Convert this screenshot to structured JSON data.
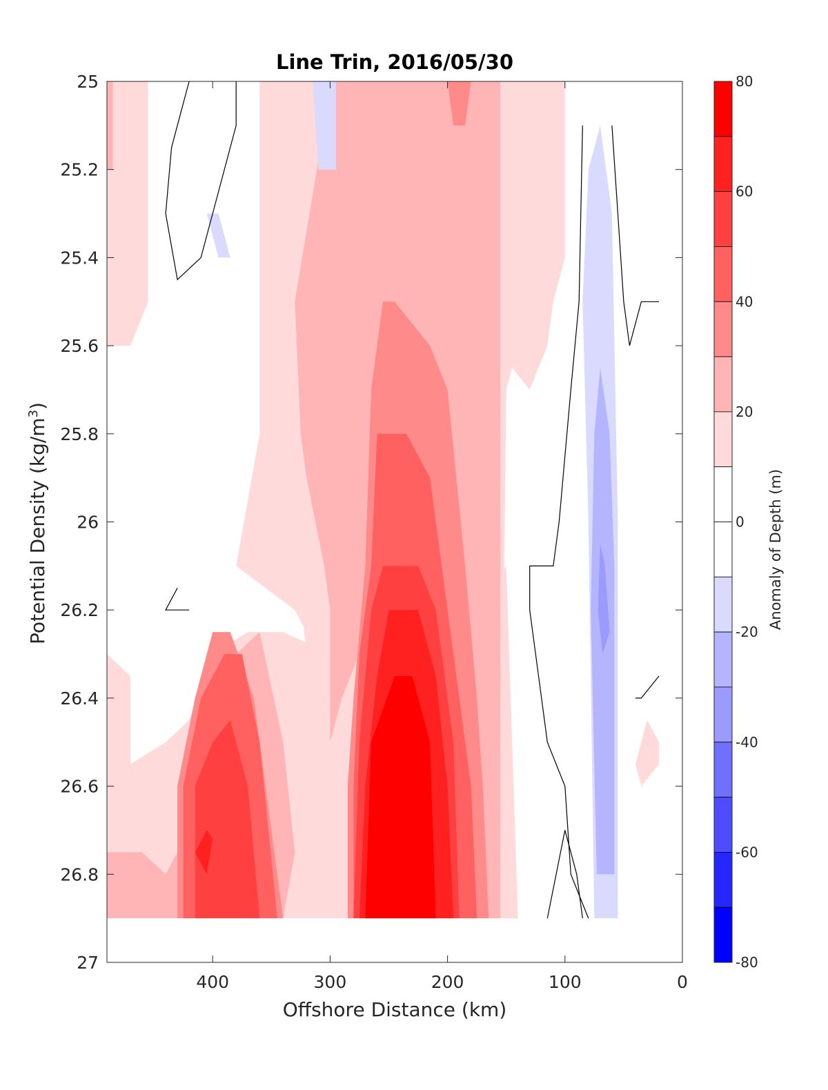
{
  "chart_data": {
    "type": "contour",
    "title": "Line Trin, 2016/05/30",
    "xlabel": "Offshore Distance (km)",
    "ylabel_main": "Potential Density (kg/m",
    "ylabel_sup": "3",
    "ylabel_close": ")",
    "xlim": [
      490,
      0
    ],
    "ylim": [
      27,
      25
    ],
    "x_reversed": true,
    "y_reversed": true,
    "x_ticks": [
      400,
      300,
      200,
      100,
      0
    ],
    "x_tick_labels": [
      "400",
      "300",
      "200",
      "100",
      "0"
    ],
    "y_ticks": [
      25,
      25.2,
      25.4,
      25.6,
      25.8,
      26,
      26.2,
      26.4,
      26.6,
      26.8,
      27
    ],
    "y_tick_labels": [
      "25",
      "25.2",
      "25.4",
      "25.6",
      "25.8",
      "26",
      "26.2",
      "26.4",
      "26.6",
      "26.8",
      "27"
    ],
    "grid": false,
    "colorbar": {
      "label": "Anomaly of Depth (m)",
      "range": [
        -80,
        80
      ],
      "ticks": [
        80,
        60,
        40,
        20,
        0,
        -20,
        -40,
        -60,
        -80
      ],
      "tick_labels": [
        "80",
        "60",
        "40",
        "20",
        "0",
        "-20",
        "-40",
        "-60",
        "-80"
      ],
      "levels": [
        {
          "from": 70,
          "to": 80,
          "color": "#ff0000"
        },
        {
          "from": 60,
          "to": 70,
          "color": "#ff2020"
        },
        {
          "from": 50,
          "to": 60,
          "color": "#ff4040"
        },
        {
          "from": 40,
          "to": 50,
          "color": "#ff6060"
        },
        {
          "from": 30,
          "to": 40,
          "color": "#ff8a8a"
        },
        {
          "from": 20,
          "to": 30,
          "color": "#ffb5b5"
        },
        {
          "from": 10,
          "to": 20,
          "color": "#ffdada"
        },
        {
          "from": 0,
          "to": 10,
          "color": "#ffffff"
        },
        {
          "from": -10,
          "to": 0,
          "color": "#ffffff"
        },
        {
          "from": -20,
          "to": -10,
          "color": "#dadaff"
        },
        {
          "from": -30,
          "to": -20,
          "color": "#b5b5ff"
        },
        {
          "from": -40,
          "to": -30,
          "color": "#9a9aff"
        },
        {
          "from": -50,
          "to": -40,
          "color": "#7070ff"
        },
        {
          "from": -60,
          "to": -50,
          "color": "#4d4dff"
        },
        {
          "from": -70,
          "to": -60,
          "color": "#2626ff"
        },
        {
          "from": -80,
          "to": -70,
          "color": "#0000ff"
        }
      ]
    },
    "data_extent": {
      "x_max": 490,
      "x_min": 20,
      "density_max": 26.9
    },
    "regions": [
      {
        "level": 10,
        "color": "#ffdada",
        "points": [
          [
            490,
            25
          ],
          [
            455,
            25
          ],
          [
            455,
            25.5
          ],
          [
            470,
            25.6
          ],
          [
            490,
            25.6
          ],
          [
            490,
            25
          ],
          [
            478,
            25
          ],
          [
            478,
            25.55
          ],
          [
            490,
            25.55
          ]
        ]
      },
      {
        "level": 10,
        "color": "#ffdada",
        "points": [
          [
            490,
            26.3
          ],
          [
            470,
            26.35
          ],
          [
            470,
            26.55
          ],
          [
            440,
            26.5
          ],
          [
            420,
            26.45
          ],
          [
            400,
            26.3
          ],
          [
            370,
            26.25
          ],
          [
            340,
            26.25
          ],
          [
            300,
            26.3
          ],
          [
            230,
            26.3
          ],
          [
            200,
            26.3
          ],
          [
            150,
            26.1
          ],
          [
            140,
            26.9
          ],
          [
            490,
            26.9
          ]
        ]
      },
      {
        "level": 10,
        "color": "#ffdada",
        "points": [
          [
            410,
            25
          ],
          [
            360,
            25
          ],
          [
            360,
            25.8
          ],
          [
            380,
            26.1
          ],
          [
            330,
            26.2
          ],
          [
            310,
            26.3
          ],
          [
            300,
            26.3
          ],
          [
            300,
            25.5
          ],
          [
            330,
            25.3
          ],
          [
            350,
            25
          ],
          [
            410,
            25
          ]
        ]
      },
      {
        "level": 10,
        "color": "#ffdada",
        "points": [
          [
            350,
            25
          ],
          [
            300,
            25
          ],
          [
            300,
            25.1
          ],
          [
            310,
            25.2
          ],
          [
            305,
            25.5
          ],
          [
            305,
            26.3
          ],
          [
            320,
            26.3
          ],
          [
            340,
            25.8
          ],
          [
            340,
            25.5
          ],
          [
            350,
            25.3
          ]
        ]
      },
      {
        "level": 10,
        "color": "#ffdada",
        "points": [
          [
            160,
            25
          ],
          [
            100,
            25
          ],
          [
            100,
            25.4
          ],
          [
            110,
            25.5
          ],
          [
            115,
            25.6
          ],
          [
            130,
            25.7
          ],
          [
            145,
            25.65
          ],
          [
            150,
            25.7
          ],
          [
            155,
            26.9
          ],
          [
            160,
            26.9
          ]
        ]
      },
      {
        "level": 10,
        "color": "#ffdada",
        "points": [
          [
            30,
            26.45
          ],
          [
            20,
            26.5
          ],
          [
            20,
            26.55
          ],
          [
            35,
            26.6
          ],
          [
            40,
            26.55
          ]
        ]
      },
      {
        "level": 20,
        "color": "#ffb5b5",
        "points": [
          [
            490,
            25
          ],
          [
            485,
            25
          ],
          [
            485,
            25.2
          ],
          [
            490,
            25.2
          ]
        ]
      },
      {
        "level": 20,
        "color": "#ffb5b5",
        "points": [
          [
            310,
            25
          ],
          [
            155,
            25
          ],
          [
            155,
            26.9
          ],
          [
            245,
            26.9
          ],
          [
            255,
            26.9
          ],
          [
            265,
            26.5
          ],
          [
            260,
            26.3
          ],
          [
            270,
            26.1
          ],
          [
            275,
            26.3
          ],
          [
            290,
            26.4
          ],
          [
            300,
            26.5
          ],
          [
            300,
            26.2
          ],
          [
            305,
            26.1
          ],
          [
            320,
            25.9
          ],
          [
            325,
            25.8
          ],
          [
            330,
            25.5
          ],
          [
            305,
            25.1
          ]
        ]
      },
      {
        "level": 20,
        "color": "#ffb5b5",
        "points": [
          [
            490,
            26.75
          ],
          [
            460,
            26.75
          ],
          [
            440,
            26.8
          ],
          [
            420,
            26.7
          ],
          [
            400,
            26.5
          ],
          [
            380,
            26.3
          ],
          [
            360,
            26.25
          ],
          [
            340,
            26.5
          ],
          [
            330,
            26.75
          ],
          [
            340,
            26.9
          ],
          [
            490,
            26.9
          ]
        ]
      },
      {
        "level": 30,
        "color": "#ff8a8a",
        "points": [
          [
            200,
            25
          ],
          [
            180,
            25
          ],
          [
            185,
            25.1
          ],
          [
            195,
            25.1
          ]
        ]
      },
      {
        "level": 30,
        "color": "#ff8a8a",
        "points": [
          [
            255,
            25.5
          ],
          [
            245,
            25.5
          ],
          [
            215,
            25.6
          ],
          [
            200,
            25.7
          ],
          [
            185,
            26.1
          ],
          [
            175,
            26.4
          ],
          [
            170,
            26.6
          ],
          [
            165,
            26.9
          ],
          [
            285,
            26.9
          ],
          [
            285,
            26.6
          ],
          [
            280,
            26.4
          ],
          [
            270,
            26.1
          ],
          [
            265,
            25.7
          ]
        ]
      },
      {
        "level": 30,
        "color": "#ff8a8a",
        "points": [
          [
            430,
            26.9
          ],
          [
            430,
            26.6
          ],
          [
            415,
            26.4
          ],
          [
            400,
            26.25
          ],
          [
            385,
            26.25
          ],
          [
            365,
            26.4
          ],
          [
            350,
            26.7
          ],
          [
            340,
            26.9
          ]
        ]
      },
      {
        "level": 40,
        "color": "#ff6060",
        "points": [
          [
            260,
            25.8
          ],
          [
            235,
            25.8
          ],
          [
            215,
            25.9
          ],
          [
            200,
            26.2
          ],
          [
            190,
            26.4
          ],
          [
            180,
            26.6
          ],
          [
            175,
            26.9
          ],
          [
            280,
            26.9
          ],
          [
            280,
            26.6
          ],
          [
            275,
            26.3
          ],
          [
            265,
            26.1
          ]
        ]
      },
      {
        "level": 40,
        "color": "#ff6060",
        "points": [
          [
            425,
            26.9
          ],
          [
            425,
            26.6
          ],
          [
            410,
            26.4
          ],
          [
            390,
            26.3
          ],
          [
            375,
            26.3
          ],
          [
            360,
            26.5
          ],
          [
            345,
            26.9
          ]
        ]
      },
      {
        "level": 50,
        "color": "#ff4040",
        "points": [
          [
            255,
            26.1
          ],
          [
            225,
            26.1
          ],
          [
            210,
            26.2
          ],
          [
            195,
            26.5
          ],
          [
            190,
            26.9
          ],
          [
            280,
            26.9
          ],
          [
            275,
            26.5
          ],
          [
            265,
            26.2
          ]
        ]
      },
      {
        "level": 50,
        "color": "#ff4040",
        "points": [
          [
            415,
            26.9
          ],
          [
            415,
            26.6
          ],
          [
            400,
            26.5
          ],
          [
            385,
            26.45
          ],
          [
            370,
            26.6
          ],
          [
            360,
            26.9
          ]
        ]
      },
      {
        "level": 60,
        "color": "#ff2020",
        "points": [
          [
            250,
            26.2
          ],
          [
            225,
            26.2
          ],
          [
            210,
            26.35
          ],
          [
            200,
            26.6
          ],
          [
            195,
            26.9
          ],
          [
            275,
            26.9
          ],
          [
            270,
            26.6
          ],
          [
            260,
            26.35
          ]
        ]
      },
      {
        "level": 60,
        "color": "#ff2020",
        "points": [
          [
            405,
            26.7
          ],
          [
            400,
            26.72
          ],
          [
            405,
            26.8
          ],
          [
            415,
            26.75
          ]
        ]
      },
      {
        "level": 70,
        "color": "#ff0000",
        "points": [
          [
            245,
            26.35
          ],
          [
            230,
            26.35
          ],
          [
            215,
            26.5
          ],
          [
            210,
            26.9
          ],
          [
            270,
            26.9
          ],
          [
            265,
            26.5
          ]
        ]
      },
      {
        "level": -10,
        "color": "#dadaff",
        "points": [
          [
            315,
            25
          ],
          [
            295,
            25
          ],
          [
            295,
            25.2
          ],
          [
            310,
            25.2
          ]
        ]
      },
      {
        "level": -10,
        "color": "#dadaff",
        "points": [
          [
            405,
            25.3
          ],
          [
            395,
            25.3
          ],
          [
            385,
            25.4
          ],
          [
            395,
            25.4
          ]
        ]
      },
      {
        "level": -10,
        "color": "#dadaff",
        "points": [
          [
            70,
            25.1
          ],
          [
            60,
            25.3
          ],
          [
            55,
            26
          ],
          [
            55,
            26.9
          ],
          [
            75,
            26.9
          ],
          [
            80,
            26
          ],
          [
            85,
            25.5
          ],
          [
            80,
            25.2
          ]
        ]
      },
      {
        "level": -20,
        "color": "#b5b5ff",
        "points": [
          [
            70,
            25.65
          ],
          [
            62,
            25.8
          ],
          [
            58,
            26.1
          ],
          [
            58,
            26.8
          ],
          [
            73,
            26.8
          ],
          [
            78,
            26.2
          ],
          [
            75,
            25.8
          ]
        ]
      },
      {
        "level": -30,
        "color": "#9a9aff",
        "points": [
          [
            70,
            26.05
          ],
          [
            66,
            26.1
          ],
          [
            62,
            26.25
          ],
          [
            68,
            26.3
          ],
          [
            72,
            26.2
          ]
        ]
      }
    ],
    "contour_lines": [
      {
        "level": 0,
        "points": [
          [
            420,
            25
          ],
          [
            435,
            25.15
          ],
          [
            440,
            25.3
          ],
          [
            430,
            25.45
          ],
          [
            410,
            25.4
          ],
          [
            400,
            25.3
          ],
          [
            380,
            25.1
          ],
          [
            380,
            25
          ]
        ]
      },
      {
        "level": 0,
        "points": [
          [
            430,
            26.15
          ],
          [
            440,
            26.2
          ],
          [
            430,
            26.2
          ],
          [
            420,
            26.2
          ]
        ]
      },
      {
        "level": 0,
        "points": [
          [
            85,
            25.1
          ],
          [
            88,
            25.5
          ],
          [
            95,
            25.7
          ],
          [
            105,
            26
          ],
          [
            110,
            26.1
          ],
          [
            130,
            26.1
          ],
          [
            130,
            26.2
          ],
          [
            120,
            26.4
          ],
          [
            115,
            26.5
          ],
          [
            100,
            26.6
          ],
          [
            95,
            26.8
          ],
          [
            80,
            26.9
          ]
        ]
      },
      {
        "level": 0,
        "points": [
          [
            60,
            25.1
          ],
          [
            55,
            25.3
          ],
          [
            50,
            25.5
          ],
          [
            45,
            25.6
          ],
          [
            40,
            25.55
          ],
          [
            35,
            25.5
          ],
          [
            20,
            25.5
          ]
        ]
      },
      {
        "level": 0,
        "points": [
          [
            40,
            26.4
          ],
          [
            35,
            26.4
          ],
          [
            20,
            26.35
          ]
        ]
      },
      {
        "level": 0,
        "points": [
          [
            115,
            26.9
          ],
          [
            100,
            26.7
          ],
          [
            95,
            26.75
          ],
          [
            90,
            26.8
          ],
          [
            85,
            26.9
          ]
        ]
      }
    ]
  }
}
